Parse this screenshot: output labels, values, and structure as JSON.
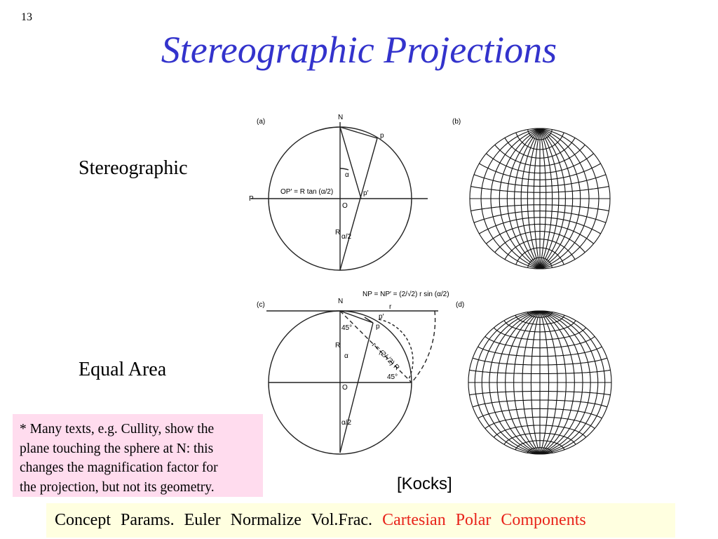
{
  "slide": {
    "page_number": "13",
    "title": "Stereographic Projections",
    "labels": [
      "Stereographic",
      "Equal Area"
    ],
    "figure": {
      "panels": [
        "(a)",
        "(b)",
        "(c)",
        "(d)"
      ],
      "a": {
        "north": "N",
        "point": "p",
        "pole": "P",
        "projected": "p′",
        "origin": "O",
        "radius": "R",
        "angle": "α",
        "half_angle": "α/2",
        "formula": "OP′ = R tan (α/2)"
      },
      "c": {
        "north": "N",
        "point": "p",
        "projected": "p′",
        "origin": "O",
        "radius": "R",
        "angle": "α",
        "half_angle": "α/2",
        "distance": "r",
        "angle45a": "45°",
        "angle45b": "45°",
        "chord": "r = (2/√2) R",
        "formula": "NP = NP′ = (2/√2) r sin (α/2)"
      },
      "credit": "[Kocks]"
    },
    "note": [
      "* Many texts, e.g. Cullity, show the",
      "plane touching the sphere at N: this",
      "changes the magnification factor for",
      "the projection, but not its geometry."
    ],
    "nav": {
      "black": [
        "Concept",
        "Params.",
        "Euler",
        "Normalize",
        "Vol.Frac."
      ],
      "red": [
        "Cartesian",
        "Polar",
        "Components"
      ]
    }
  }
}
